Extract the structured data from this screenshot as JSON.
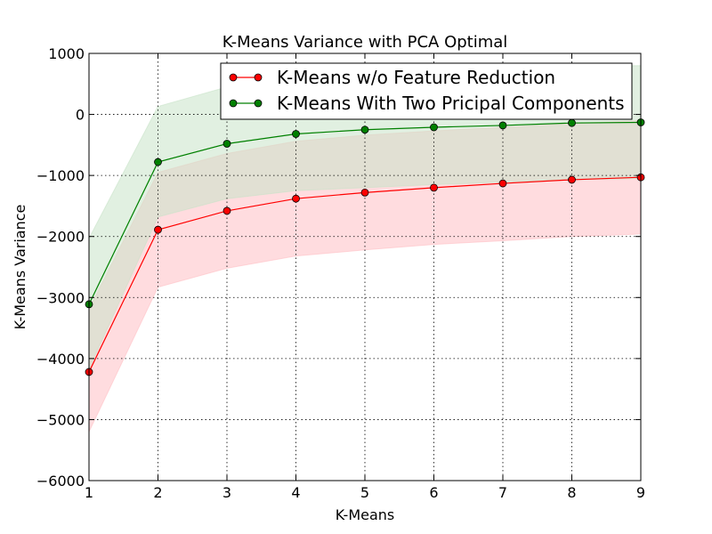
{
  "chart_data": {
    "type": "line",
    "title": "K-Means Variance with PCA Optimal",
    "xlabel": "K-Means",
    "ylabel": "K-Means Variance",
    "xlim": [
      1,
      9
    ],
    "ylim": [
      -6000,
      1000
    ],
    "x": [
      1,
      2,
      3,
      4,
      5,
      6,
      7,
      8,
      9
    ],
    "x_ticks": [
      "1",
      "2",
      "3",
      "4",
      "5",
      "6",
      "7",
      "8",
      "9"
    ],
    "y_ticks": [
      {
        "value": 1000,
        "label": "1000"
      },
      {
        "value": 0,
        "label": "0"
      },
      {
        "value": -1000,
        "label": "−1000"
      },
      {
        "value": -2000,
        "label": "−2000"
      },
      {
        "value": -3000,
        "label": "−3000"
      },
      {
        "value": -4000,
        "label": "−4000"
      },
      {
        "value": -5000,
        "label": "−5000"
      },
      {
        "value": -6000,
        "label": "−6000"
      }
    ],
    "grid": true,
    "legend_position": "top-right",
    "series": [
      {
        "name": "K-Means w/o Feature Reduction",
        "color": "#ff0000",
        "band_color": "#ffc0c5",
        "values": [
          -4220,
          -1890,
          -1580,
          -1380,
          -1280,
          -1200,
          -1130,
          -1070,
          -1030
        ],
        "band_upper": [
          -3190,
          -950,
          -640,
          -440,
          -340,
          -270,
          -210,
          -150,
          -100
        ],
        "band_lower": [
          -5200,
          -2830,
          -2520,
          -2320,
          -2220,
          -2130,
          -2070,
          -2000,
          -1960
        ]
      },
      {
        "name": "K-Means With Two Pricipal Components",
        "color": "#008000",
        "band_color": "#c8e3c8",
        "values": [
          -3110,
          -780,
          -480,
          -320,
          -250,
          -210,
          -180,
          -140,
          -130
        ],
        "band_upper": [
          -2030,
          130,
          450,
          630,
          710,
          740,
          760,
          790,
          800
        ],
        "band_lower": [
          -4170,
          -1680,
          -1380,
          -1250,
          -1200,
          -1150,
          -1110,
          -1070,
          -1050
        ]
      }
    ]
  }
}
